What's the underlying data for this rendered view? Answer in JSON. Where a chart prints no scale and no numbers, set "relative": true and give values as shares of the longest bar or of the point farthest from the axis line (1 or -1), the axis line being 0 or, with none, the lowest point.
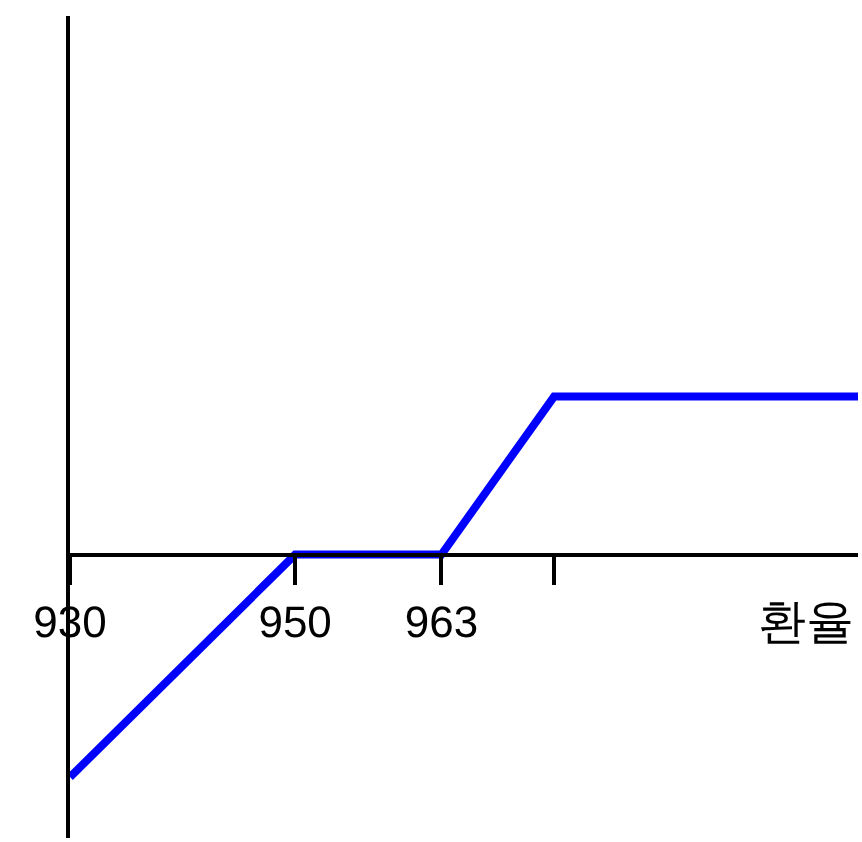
{
  "chart_data": {
    "type": "line",
    "xlabel": "환율",
    "relative": true,
    "x": [
      930,
      950,
      963,
      973,
      1000
    ],
    "series": [
      {
        "color": "#0000ff",
        "values": [
          -1,
          0,
          0,
          0.71,
          0.71
        ]
      }
    ],
    "xlim": [
      930,
      1000
    ],
    "xticks": [
      930,
      950,
      963,
      {
        "value": 973,
        "label": null
      }
    ],
    "grid": false,
    "marker": "none",
    "line_style": "solid"
  }
}
